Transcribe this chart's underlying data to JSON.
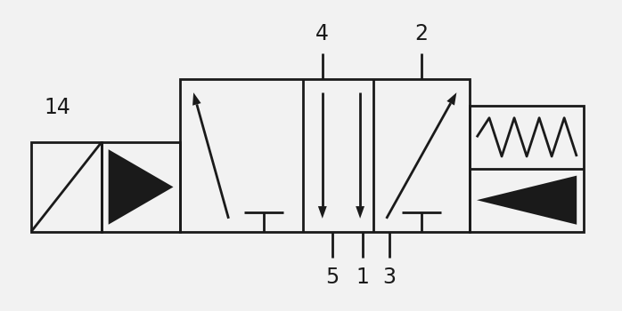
{
  "bg_color": "#f2f2f2",
  "line_color": "#1a1a1a",
  "lw": 2.0,
  "fig_w": 6.98,
  "fig_h": 3.5,
  "dpi": 100,
  "label_fontsize": 17
}
